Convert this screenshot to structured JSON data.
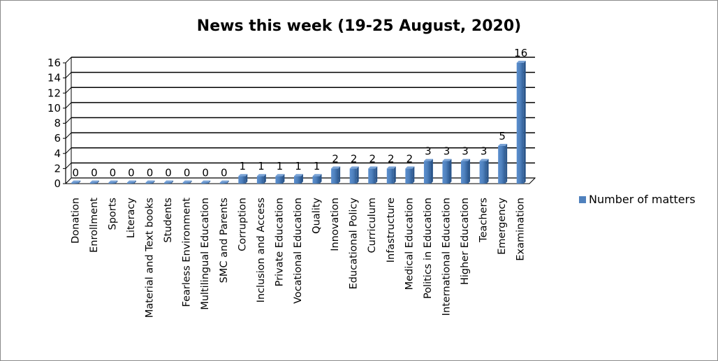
{
  "chart_data": {
    "type": "bar",
    "title": "News this week (19-25 August, 2020)",
    "xlabel": "",
    "ylabel": "",
    "ylim": [
      0,
      16
    ],
    "yticks": [
      0,
      2,
      4,
      6,
      8,
      10,
      12,
      14,
      16
    ],
    "grid": true,
    "legend_position": "right",
    "bar_color": "#4F81BD",
    "categories": [
      "Donation",
      "Enrollment",
      "Sports",
      "Literacy",
      "Material and Text books",
      "Students",
      "Fearless Environment",
      "Multilingual Education",
      "SMC and Parents",
      "Corruption",
      "Inclusion and Access",
      "Private Education",
      "Vocational Education",
      "Quality",
      "Innovation",
      "Educational Policy",
      "Curriculum",
      "Infastructure",
      "Medical Education",
      "Politics in Education",
      "International Education",
      "Higher Education",
      "Teachers",
      "Emergency",
      "Examination"
    ],
    "series": [
      {
        "name": "Number of matters",
        "values": [
          0,
          0,
          0,
          0,
          0,
          0,
          0,
          0,
          0,
          1,
          1,
          1,
          1,
          1,
          2,
          2,
          2,
          2,
          2,
          3,
          3,
          3,
          3,
          5,
          16
        ]
      }
    ]
  }
}
